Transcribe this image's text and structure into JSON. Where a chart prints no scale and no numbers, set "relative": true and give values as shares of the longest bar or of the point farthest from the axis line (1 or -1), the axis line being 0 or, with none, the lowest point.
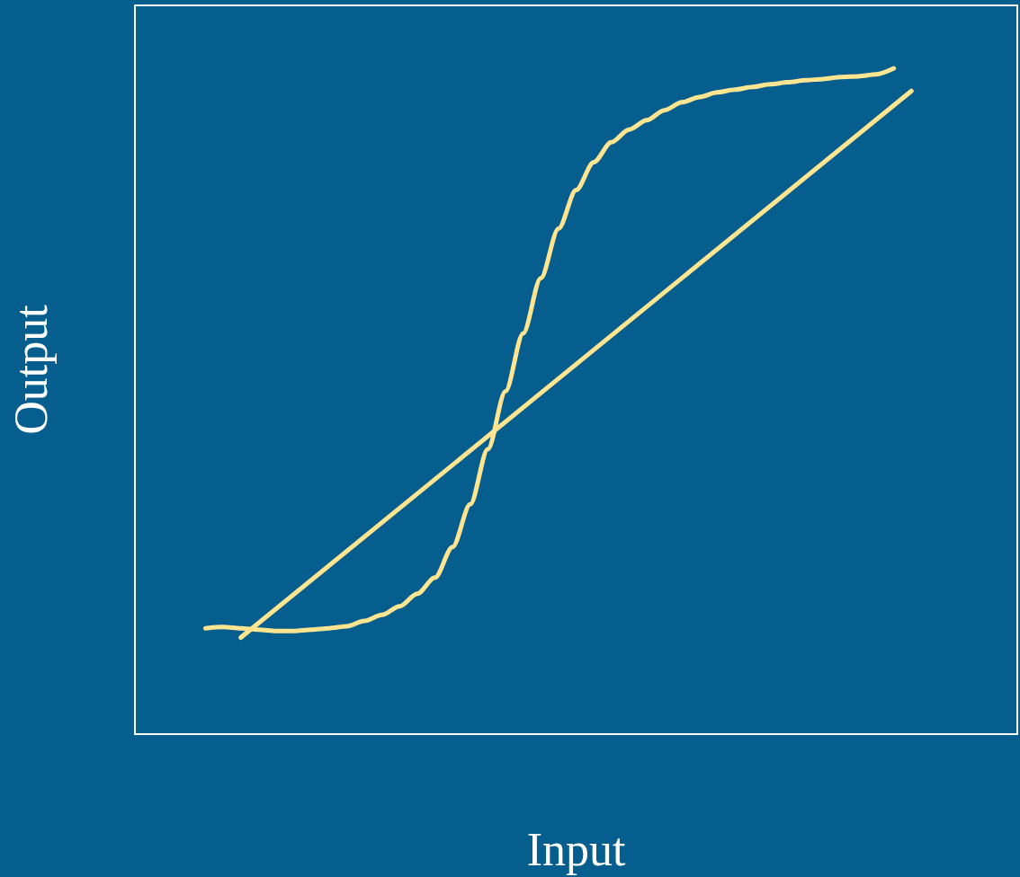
{
  "chart_data": {
    "type": "line",
    "relative": true,
    "xlabel": "Input",
    "ylabel": "Output",
    "grid": false,
    "marker": "none",
    "line_style": "solid",
    "categories": [
      null,
      null,
      null,
      null,
      null,
      null,
      null,
      null,
      null,
      null,
      null,
      null,
      null,
      null,
      null,
      null,
      null,
      null,
      null,
      null,
      null,
      null,
      null,
      null,
      null,
      null,
      null,
      null,
      null,
      null,
      null,
      null,
      null,
      null,
      null,
      null,
      null,
      null,
      null,
      null,
      null,
      null,
      null,
      null,
      null,
      null,
      null,
      null,
      null,
      null,
      null
    ],
    "series": [
      {
        "color": "#ffe58f",
        "values": [
          null,
          null,
          null,
          null,
          0.159,
          0.161,
          0.159,
          0.157,
          0.155,
          0.155,
          0.157,
          0.159,
          0.162,
          0.17,
          0.179,
          0.192,
          0.211,
          0.235,
          0.281,
          0.345,
          0.428,
          0.515,
          0.602,
          0.685,
          0.759,
          0.817,
          0.859,
          0.889,
          0.908,
          0.922,
          0.937,
          0.949,
          0.957,
          0.964,
          0.968,
          0.972,
          0.976,
          0.979,
          0.982,
          0.984,
          0.987,
          0.988,
          0.991,
          1,
          null,
          null,
          null,
          null,
          null,
          null,
          null
        ]
      },
      {
        "color": "#ffe58f",
        "values": [
          null,
          null,
          null,
          null,
          null,
          null,
          0.145,
          null,
          null,
          null,
          null,
          null,
          null,
          null,
          null,
          null,
          null,
          null,
          null,
          null,
          null,
          null,
          null,
          null,
          null,
          null,
          null,
          null,
          null,
          null,
          null,
          null,
          null,
          null,
          null,
          null,
          null,
          null,
          null,
          null,
          null,
          null,
          null,
          null,
          0.966,
          null,
          null,
          null,
          null,
          null,
          null
        ]
      }
    ]
  }
}
